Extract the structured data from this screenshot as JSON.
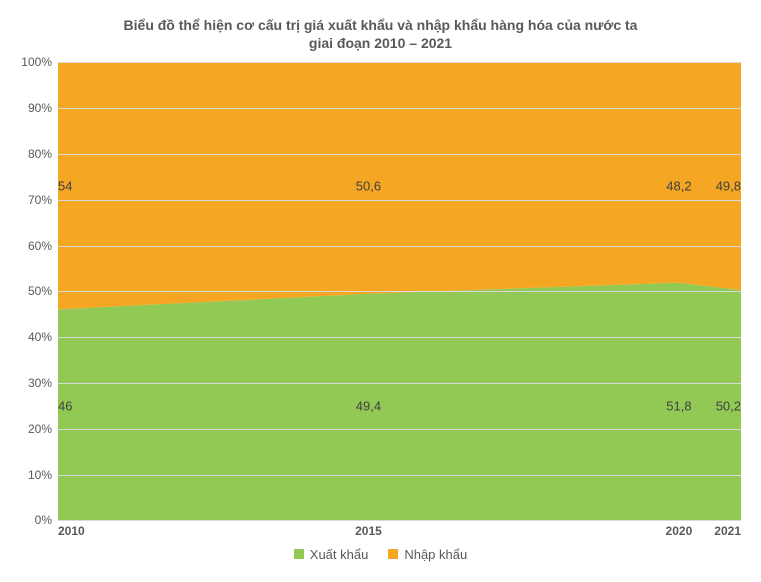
{
  "chart": {
    "type": "stacked-area-100pct",
    "title_line1": "Biểu đồ thể hiện cơ cấu trị giá xuất khẩu và nhập khẩu hàng hóa của nước ta",
    "title_line2": "giai đoạn 2010 – 2021",
    "title_color": "#595959",
    "title_fontsize": 14,
    "background_color": "#ffffff",
    "grid_color": "#d9d9d9",
    "axis_label_color": "#595959",
    "axis_fontsize": 12,
    "data_label_color": "#404040",
    "data_label_fontsize": 13,
    "x": {
      "values": [
        2010,
        2015,
        2020,
        2021
      ],
      "min": 2010,
      "max": 2021
    },
    "y": {
      "min": 0,
      "max": 100,
      "tick_step": 10,
      "tick_suffix": "%"
    },
    "series": [
      {
        "key": "export",
        "label": "Xuất khẩu",
        "color": "#92c954",
        "values": [
          46,
          49.4,
          51.8,
          50.2
        ],
        "display": [
          "46",
          "49,4",
          "51,8",
          "50,2"
        ]
      },
      {
        "key": "import",
        "label": "Nhập khẩu",
        "color": "#f5a623",
        "values": [
          54,
          50.6,
          48.2,
          49.8
        ],
        "display": [
          "54",
          "50,6",
          "48,2",
          "49,8"
        ]
      }
    ],
    "legend": {
      "position": "bottom",
      "swatch_size": 10
    }
  }
}
